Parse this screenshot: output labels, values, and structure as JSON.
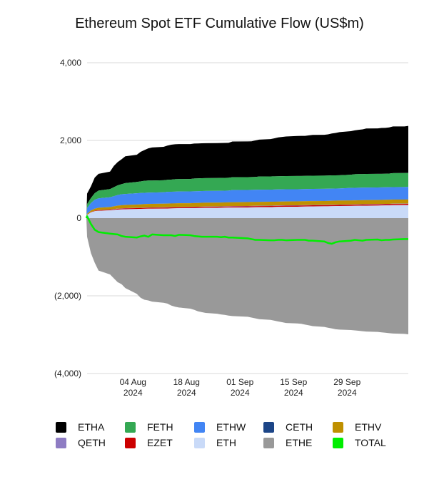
{
  "title": "Ethereum Spot ETF Cumulative Flow (US$m)",
  "chart_data": {
    "type": "area",
    "title": "Ethereum Spot ETF Cumulative Flow (US$m)",
    "ylabel": "",
    "xlabel": "",
    "ylim": [
      -4000,
      4000
    ],
    "y_ticks": [
      4000,
      2000,
      0,
      -2000,
      -4000
    ],
    "y_tick_labels": [
      "4,000",
      "2,000",
      "0",
      "(2,000)",
      "(4,000)"
    ],
    "x_ticks": [
      {
        "date": "2024-08-04",
        "line1": "04 Aug",
        "line2": "2024"
      },
      {
        "date": "2024-08-18",
        "line1": "18 Aug",
        "line2": "2024"
      },
      {
        "date": "2024-09-01",
        "line1": "01 Sep",
        "line2": "2024"
      },
      {
        "date": "2024-09-15",
        "line1": "15 Sep",
        "line2": "2024"
      },
      {
        "date": "2024-09-29",
        "line1": "29 Sep",
        "line2": "2024"
      }
    ],
    "x": [
      "2024-07-23",
      "2024-07-24",
      "2024-07-25",
      "2024-07-26",
      "2024-07-29",
      "2024-07-30",
      "2024-07-31",
      "2024-08-01",
      "2024-08-02",
      "2024-08-05",
      "2024-08-06",
      "2024-08-07",
      "2024-08-08",
      "2024-08-09",
      "2024-08-12",
      "2024-08-13",
      "2024-08-14",
      "2024-08-15",
      "2024-08-16",
      "2024-08-19",
      "2024-08-20",
      "2024-08-21",
      "2024-08-22",
      "2024-08-23",
      "2024-08-26",
      "2024-08-27",
      "2024-08-28",
      "2024-08-29",
      "2024-08-30",
      "2024-09-03",
      "2024-09-04",
      "2024-09-05",
      "2024-09-06",
      "2024-09-09",
      "2024-09-10",
      "2024-09-11",
      "2024-09-12",
      "2024-09-13",
      "2024-09-16",
      "2024-09-17",
      "2024-09-18",
      "2024-09-19",
      "2024-09-20",
      "2024-09-23",
      "2024-09-24",
      "2024-09-25",
      "2024-09-26",
      "2024-09-27",
      "2024-09-30",
      "2024-10-01",
      "2024-10-02",
      "2024-10-03",
      "2024-10-04",
      "2024-10-07",
      "2024-10-08",
      "2024-10-09",
      "2024-10-10",
      "2024-10-11",
      "2024-10-14",
      "2024-10-15"
    ],
    "series": [
      {
        "name": "ETHA",
        "color": "#000000",
        "values": [
          270,
          300,
          400,
          430,
          450,
          550,
          600,
          640,
          690,
          700,
          760,
          790,
          830,
          850,
          860,
          880,
          900,
          900,
          900,
          900,
          900,
          900,
          900,
          900,
          900,
          900,
          900,
          900,
          920,
          920,
          920,
          940,
          950,
          960,
          980,
          1000,
          1010,
          1020,
          1030,
          1030,
          1030,
          1040,
          1050,
          1050,
          1060,
          1080,
          1090,
          1110,
          1120,
          1130,
          1140,
          1150,
          1170,
          1170,
          1180,
          1180,
          1190,
          1200,
          1200,
          1210
        ]
      },
      {
        "name": "FETH",
        "color": "#34a853",
        "values": [
          100,
          130,
          170,
          200,
          210,
          230,
          250,
          260,
          280,
          290,
          300,
          310,
          310,
          310,
          310,
          310,
          310,
          320,
          320,
          320,
          330,
          330,
          330,
          330,
          330,
          330,
          330,
          330,
          330,
          330,
          330,
          330,
          340,
          340,
          340,
          340,
          340,
          340,
          340,
          340,
          340,
          340,
          340,
          340,
          340,
          340,
          340,
          340,
          340,
          350,
          350,
          350,
          350,
          350,
          350,
          350,
          350,
          360,
          360,
          360
        ]
      },
      {
        "name": "ETHW",
        "color": "#4285f4",
        "values": [
          150,
          190,
          230,
          240,
          250,
          260,
          270,
          280,
          280,
          290,
          290,
          290,
          290,
          290,
          290,
          300,
          300,
          300,
          300,
          300,
          300,
          300,
          300,
          300,
          300,
          300,
          300,
          300,
          310,
          310,
          310,
          310,
          310,
          310,
          310,
          310,
          310,
          310,
          310,
          310,
          310,
          310,
          310,
          310,
          310,
          310,
          310,
          310,
          320,
          320,
          320,
          320,
          320,
          320,
          320,
          320,
          320,
          320,
          320,
          320
        ]
      },
      {
        "name": "CETH",
        "color": "#1c4587",
        "values": [
          0,
          1,
          1,
          2,
          2,
          2,
          3,
          3,
          3,
          3,
          3,
          3,
          3,
          3,
          3,
          3,
          3,
          3,
          3,
          3,
          3,
          3,
          3,
          3,
          3,
          3,
          3,
          3,
          3,
          3,
          3,
          3,
          3,
          3,
          3,
          3,
          3,
          3,
          3,
          3,
          3,
          3,
          3,
          3,
          3,
          3,
          3,
          3,
          3,
          3,
          3,
          3,
          3,
          3,
          3,
          3,
          3,
          3,
          3,
          3
        ]
      },
      {
        "name": "ETHV",
        "color": "#bf9000",
        "values": [
          30,
          40,
          50,
          60,
          65,
          70,
          75,
          80,
          82,
          84,
          86,
          88,
          90,
          90,
          92,
          92,
          94,
          94,
          95,
          95,
          96,
          96,
          97,
          97,
          98,
          98,
          98,
          99,
          99,
          100,
          100,
          100,
          100,
          100,
          100,
          100,
          100,
          100,
          100,
          100,
          100,
          100,
          100,
          100,
          100,
          102,
          102,
          102,
          103,
          103,
          103,
          103,
          104,
          104,
          104,
          104,
          105,
          105,
          105,
          105
        ]
      },
      {
        "name": "QETH",
        "color": "#8e7cc3",
        "values": [
          0,
          1,
          2,
          3,
          4,
          5,
          5,
          6,
          6,
          7,
          7,
          7,
          8,
          8,
          8,
          8,
          8,
          8,
          8,
          8,
          8,
          8,
          9,
          9,
          9,
          9,
          9,
          9,
          9,
          9,
          9,
          9,
          9,
          9,
          9,
          9,
          9,
          9,
          9,
          9,
          9,
          9,
          9,
          9,
          9,
          9,
          9,
          9,
          9,
          9,
          9,
          9,
          9,
          9,
          9,
          9,
          9,
          9,
          9,
          9
        ]
      },
      {
        "name": "EZET",
        "color": "#cc0000",
        "values": [
          0,
          5,
          10,
          14,
          16,
          18,
          20,
          20,
          20,
          22,
          22,
          24,
          24,
          24,
          25,
          25,
          25,
          25,
          25,
          25,
          25,
          26,
          26,
          26,
          26,
          26,
          26,
          26,
          27,
          27,
          27,
          27,
          27,
          28,
          28,
          28,
          28,
          28,
          28,
          28,
          28,
          28,
          28,
          28,
          28,
          28,
          28,
          28,
          29,
          29,
          29,
          29,
          29,
          29,
          29,
          29,
          29,
          30,
          30,
          30
        ]
      },
      {
        "name": "ETH",
        "color": "#c9daf8",
        "values": [
          80,
          150,
          180,
          190,
          200,
          210,
          220,
          225,
          230,
          235,
          238,
          240,
          242,
          244,
          246,
          248,
          250,
          252,
          254,
          256,
          258,
          260,
          262,
          264,
          266,
          268,
          270,
          272,
          274,
          276,
          278,
          280,
          282,
          284,
          286,
          288,
          290,
          292,
          294,
          296,
          298,
          300,
          302,
          304,
          306,
          308,
          310,
          312,
          314,
          316,
          318,
          320,
          322,
          324,
          326,
          328,
          330,
          332,
          334,
          336
        ]
      },
      {
        "name": "ETHE",
        "color": "#999999",
        "values": [
          -480,
          -900,
          -1150,
          -1350,
          -1450,
          -1550,
          -1650,
          -1700,
          -1800,
          -1950,
          -2050,
          -2100,
          -2120,
          -2150,
          -2180,
          -2200,
          -2250,
          -2280,
          -2300,
          -2330,
          -2360,
          -2400,
          -2420,
          -2440,
          -2460,
          -2480,
          -2490,
          -2510,
          -2520,
          -2540,
          -2560,
          -2580,
          -2600,
          -2620,
          -2640,
          -2660,
          -2680,
          -2700,
          -2710,
          -2720,
          -2740,
          -2760,
          -2780,
          -2800,
          -2820,
          -2840,
          -2860,
          -2870,
          -2880,
          -2890,
          -2900,
          -2910,
          -2920,
          -2930,
          -2940,
          -2950,
          -2960,
          -2970,
          -2980,
          -2990
        ]
      },
      {
        "name": "TOTAL",
        "color": "#00ee00",
        "values": [
          50,
          -150,
          -300,
          -360,
          -400,
          -410,
          -420,
          -460,
          -480,
          -500,
          -470,
          -450,
          -480,
          -420,
          -440,
          -440,
          -440,
          -460,
          -430,
          -440,
          -460,
          -470,
          -480,
          -480,
          -480,
          -490,
          -480,
          -500,
          -500,
          -520,
          -540,
          -560,
          -560,
          -570,
          -570,
          -560,
          -560,
          -570,
          -560,
          -560,
          -560,
          -580,
          -580,
          -600,
          -640,
          -660,
          -620,
          -600,
          -580,
          -560,
          -570,
          -580,
          -560,
          -550,
          -570,
          -560,
          -560,
          -550,
          -540,
          -540
        ]
      }
    ],
    "legend": [
      [
        "ETHA",
        "FETH",
        "ETHW",
        "CETH",
        "ETHV"
      ],
      [
        "QETH",
        "EZET",
        "ETH",
        "ETHE",
        "TOTAL"
      ]
    ],
    "legend_position": "bottom",
    "grid": "horizontal"
  }
}
